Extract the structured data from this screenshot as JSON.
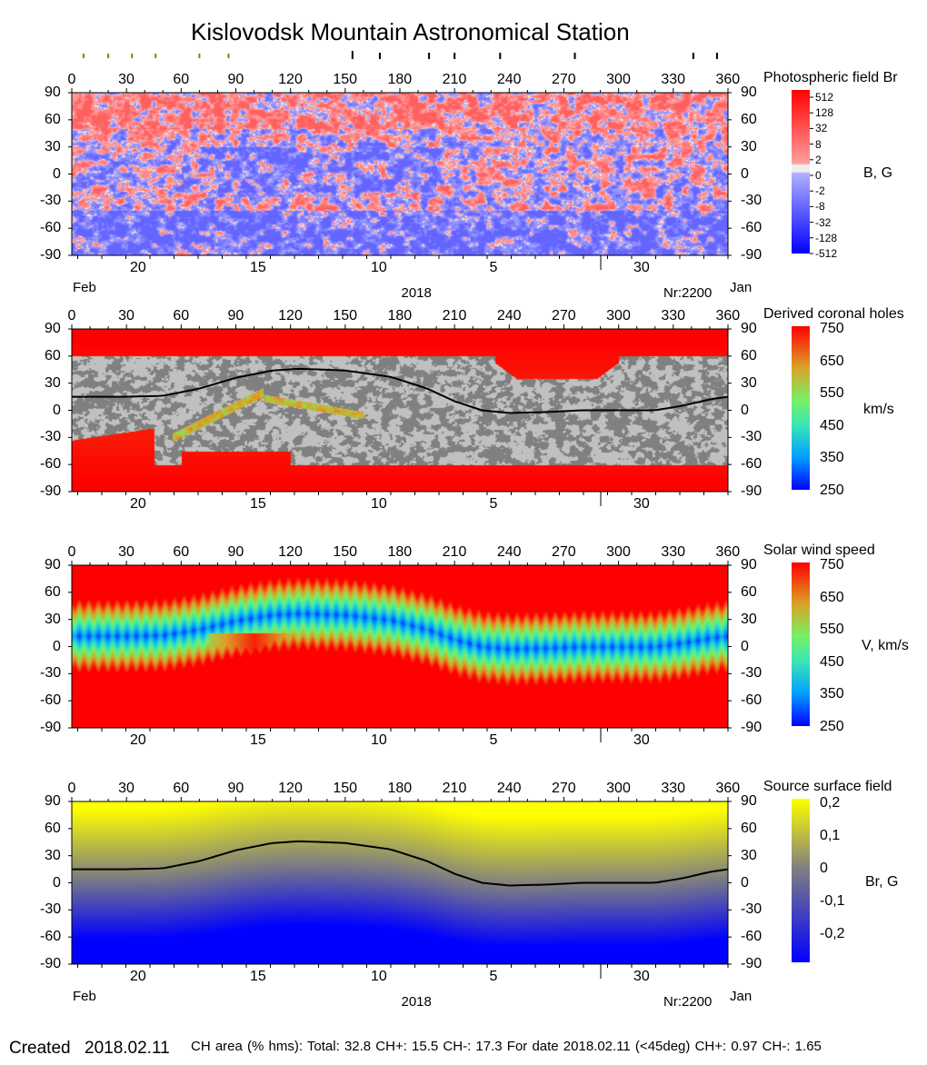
{
  "title": "Kislovodsk Mountain Astronomical Station",
  "footer": {
    "created_label": "Created",
    "created_date": "2018.02.11",
    "stats": "CH area (% hms): Total: 32.8 CH+: 15.5   CH-: 17.3    For date 2018.02.11 (<45deg) CH+: 0.97    CH-: 1.65"
  },
  "chart_data": [
    {
      "type": "heatmap",
      "title": "Photospheric field Br",
      "colorbar_label": "B, G",
      "colorbar_ticks": [
        "512",
        "128",
        "32",
        "8",
        "2",
        "0",
        "-2",
        "-8",
        "-32",
        "-128",
        "-512"
      ],
      "colors": {
        "positive": "#ff0000",
        "zero": "#eeeeee",
        "negative": "#0000ff"
      },
      "xlim": [
        0,
        360
      ],
      "ylim": [
        -90,
        90
      ],
      "xticks": [
        "0",
        "30",
        "60",
        "90",
        "120",
        "150",
        "180",
        "210",
        "240",
        "270",
        "300",
        "330",
        "360"
      ],
      "yticks": [
        "90",
        "60",
        "30",
        "0",
        "-30",
        "-60",
        "-90"
      ],
      "date_ticks": [
        "20",
        "15",
        "10",
        "5",
        "30"
      ],
      "date_labels": {
        "left": "Feb",
        "center": "2018",
        "right_id": "Nr:2200",
        "right": "Jan"
      },
      "top_markers_olive": [
        6.5,
        20,
        33,
        46,
        70,
        86
      ],
      "top_markers_black": [
        154,
        169,
        196,
        210,
        235,
        276,
        341,
        354
      ]
    },
    {
      "type": "heatmap",
      "title": "Derived coronal holes",
      "colorbar_label": "km/s",
      "colorbar_ticks": [
        "750",
        "650",
        "550",
        "450",
        "350",
        "250"
      ],
      "xlim": [
        0,
        360
      ],
      "ylim": [
        -90,
        90
      ],
      "neutral_line": true
    },
    {
      "type": "heatmap",
      "title": "Solar wind speed",
      "colorbar_label": "V, km/s",
      "colorbar_ticks": [
        "750",
        "650",
        "550",
        "450",
        "350",
        "250"
      ],
      "xlim": [
        0,
        360
      ],
      "ylim": [
        -90,
        90
      ]
    },
    {
      "type": "heatmap",
      "title": "Source surface field",
      "colorbar_label": "Br, G",
      "colorbar_ticks": [
        "0,2",
        "0,1",
        "0",
        "-0,1",
        "-0,2"
      ],
      "xlim": [
        0,
        360
      ],
      "ylim": [
        -90,
        90
      ],
      "neutral_line": [
        [
          0,
          15
        ],
        [
          30,
          15
        ],
        [
          50,
          16
        ],
        [
          70,
          24
        ],
        [
          90,
          36
        ],
        [
          110,
          44
        ],
        [
          125,
          46
        ],
        [
          150,
          44
        ],
        [
          175,
          37
        ],
        [
          195,
          24
        ],
        [
          210,
          10
        ],
        [
          225,
          0
        ],
        [
          240,
          -3
        ],
        [
          260,
          -2
        ],
        [
          280,
          0
        ],
        [
          300,
          0
        ],
        [
          320,
          0
        ],
        [
          335,
          5
        ],
        [
          350,
          12
        ],
        [
          360,
          15
        ]
      ]
    }
  ]
}
